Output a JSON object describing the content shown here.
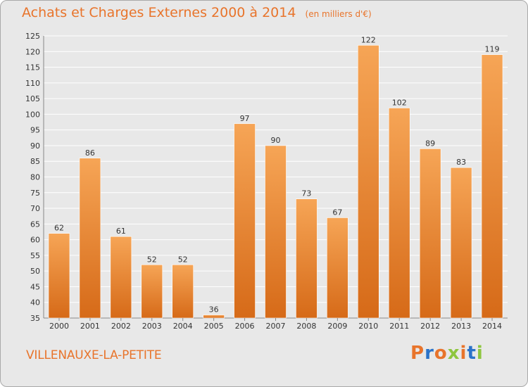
{
  "header": {
    "title": "Achats et Charges Externes 2000 à 2014",
    "unit": "(en milliers d'€)"
  },
  "footer": {
    "commune": "VILLENAUXE-LA-PETITE",
    "logo_text": "Proxiti"
  },
  "colors": {
    "accent": "#e8742b",
    "bar_top": "#f6a556",
    "bar_bottom": "#d66a18",
    "background": "#e8e8e8",
    "grid": "#ffffff",
    "logo_letters": [
      "#e8742b",
      "#2b73c9",
      "#e8742b",
      "#8ec63f",
      "#e8742b",
      "#2b73c9",
      "#8ec63f"
    ]
  },
  "chart_data": {
    "type": "bar",
    "title": "Achats et Charges Externes 2000 à 2014",
    "subtitle": "(en milliers d'€)",
    "categories": [
      "2000",
      "2001",
      "2002",
      "2003",
      "2004",
      "2005",
      "2006",
      "2007",
      "2008",
      "2009",
      "2010",
      "2011",
      "2012",
      "2013",
      "2014"
    ],
    "values": [
      62,
      86,
      61,
      52,
      52,
      36,
      97,
      90,
      73,
      67,
      122,
      102,
      89,
      83,
      119
    ],
    "ylim": [
      35,
      125
    ],
    "yticks": [
      35,
      40,
      45,
      50,
      55,
      60,
      65,
      70,
      75,
      80,
      85,
      90,
      95,
      100,
      105,
      110,
      115,
      120,
      125
    ],
    "grid": true,
    "data_labels": true
  }
}
